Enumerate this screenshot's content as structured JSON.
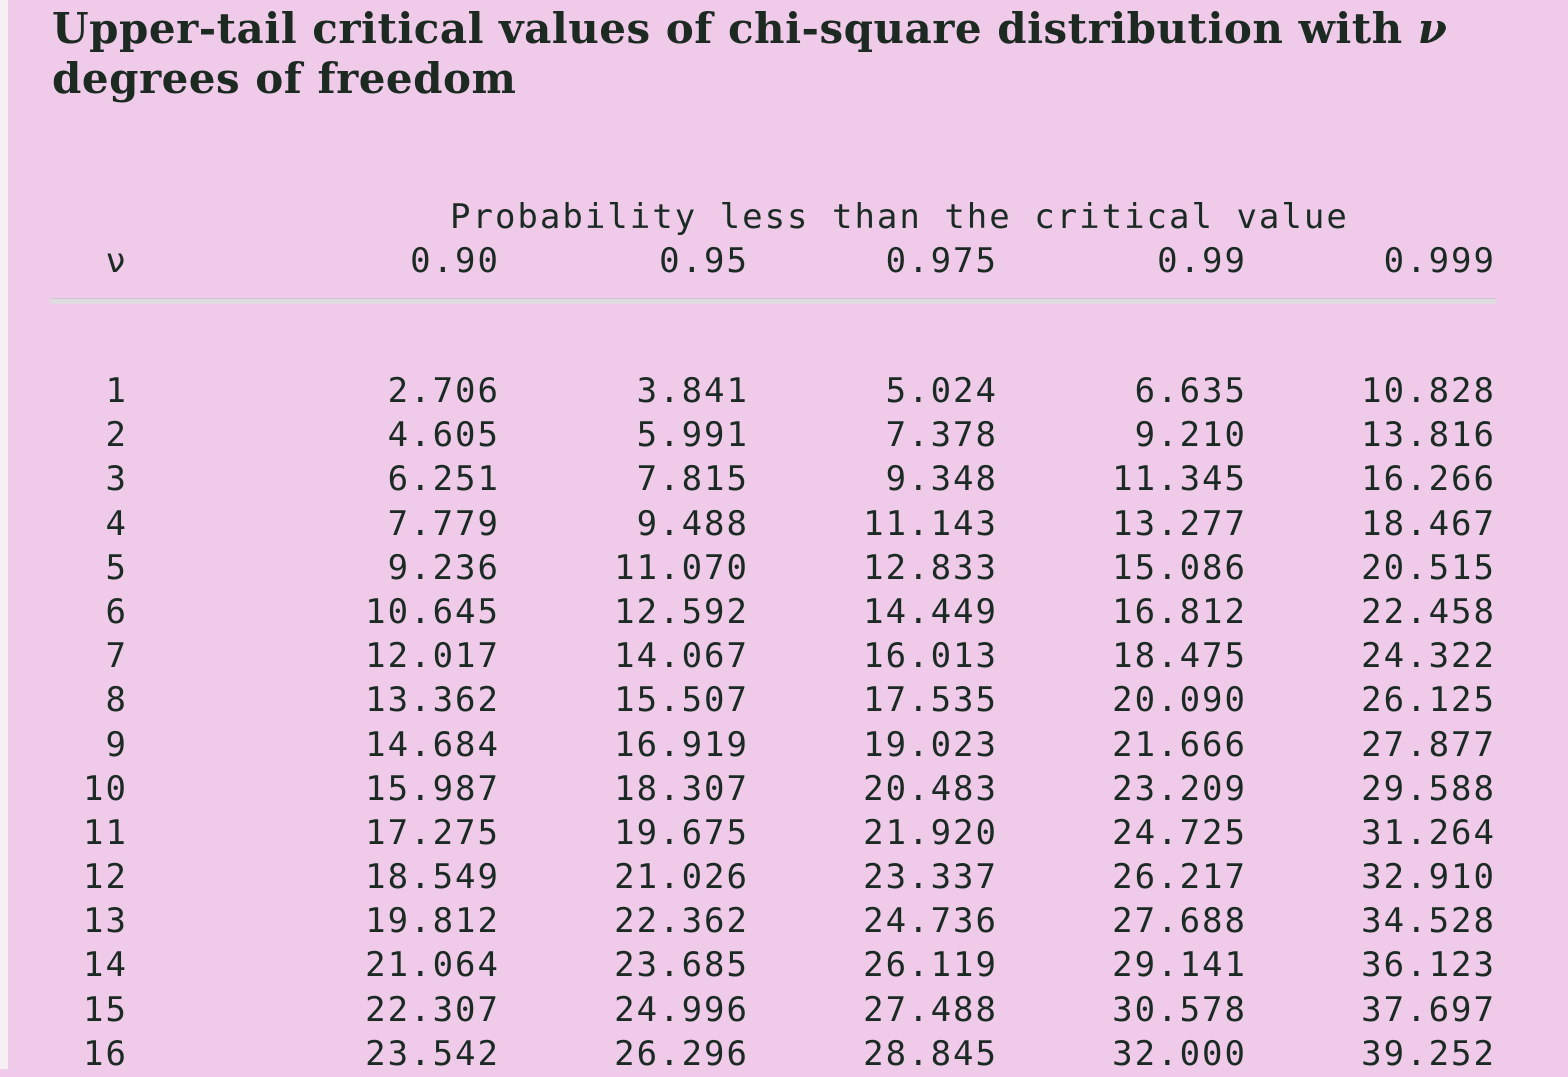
{
  "title": {
    "text": "Upper-tail critical values of chi-square distribution with",
    "symbol": "ν",
    "text2": "degrees of freedom"
  },
  "header": {
    "probability_label": "Probability less than the critical value",
    "v_label": "ν",
    "columns": [
      "0.90",
      "0.95",
      "0.975",
      "0.99",
      "0.999"
    ]
  },
  "rows": [
    {
      "v": "1",
      "values": [
        "2.706",
        "3.841",
        "5.024",
        "6.635",
        "10.828"
      ]
    },
    {
      "v": "2",
      "values": [
        "4.605",
        "5.991",
        "7.378",
        "9.210",
        "13.816"
      ]
    },
    {
      "v": "3",
      "values": [
        "6.251",
        "7.815",
        "9.348",
        "11.345",
        "16.266"
      ]
    },
    {
      "v": "4",
      "values": [
        "7.779",
        "9.488",
        "11.143",
        "13.277",
        "18.467"
      ]
    },
    {
      "v": "5",
      "values": [
        "9.236",
        "11.070",
        "12.833",
        "15.086",
        "20.515"
      ]
    },
    {
      "v": "6",
      "values": [
        "10.645",
        "12.592",
        "14.449",
        "16.812",
        "22.458"
      ]
    },
    {
      "v": "7",
      "values": [
        "12.017",
        "14.067",
        "16.013",
        "18.475",
        "24.322"
      ]
    },
    {
      "v": "8",
      "values": [
        "13.362",
        "15.507",
        "17.535",
        "20.090",
        "26.125"
      ]
    },
    {
      "v": "9",
      "values": [
        "14.684",
        "16.919",
        "19.023",
        "21.666",
        "27.877"
      ]
    },
    {
      "v": "10",
      "values": [
        "15.987",
        "18.307",
        "20.483",
        "23.209",
        "29.588"
      ]
    },
    {
      "v": "11",
      "values": [
        "17.275",
        "19.675",
        "21.920",
        "24.725",
        "31.264"
      ]
    },
    {
      "v": "12",
      "values": [
        "18.549",
        "21.026",
        "23.337",
        "26.217",
        "32.910"
      ]
    },
    {
      "v": "13",
      "values": [
        "19.812",
        "22.362",
        "24.736",
        "27.688",
        "34.528"
      ]
    },
    {
      "v": "14",
      "values": [
        "21.064",
        "23.685",
        "26.119",
        "29.141",
        "36.123"
      ]
    },
    {
      "v": "15",
      "values": [
        "22.307",
        "24.996",
        "27.488",
        "30.578",
        "37.697"
      ]
    },
    {
      "v": "16",
      "values": [
        "23.542",
        "26.296",
        "28.845",
        "32.000",
        "39.252"
      ]
    }
  ]
}
